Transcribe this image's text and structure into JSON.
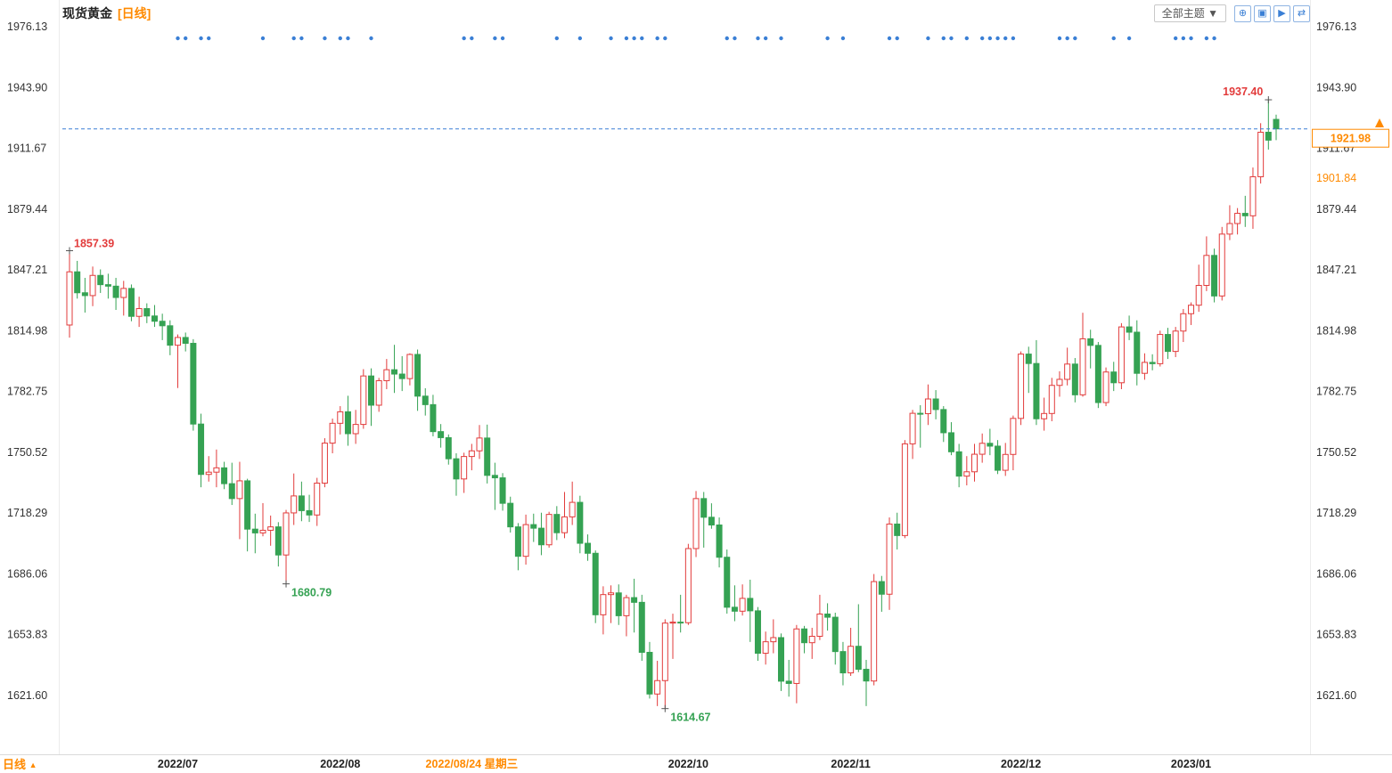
{
  "header": {
    "title": "现货黄金",
    "period_tag": "[日线]",
    "theme_button_label": "全部主题 ▼",
    "toolbar_icons": [
      {
        "name": "pan-icon",
        "glyph": "⊕"
      },
      {
        "name": "kline-style-icon",
        "glyph": "▣"
      },
      {
        "name": "playback-icon",
        "glyph": "▶"
      },
      {
        "name": "export-icon",
        "glyph": "⇄"
      }
    ]
  },
  "footer": {
    "period_label": "日线",
    "arrow": "▲"
  },
  "chart_data": {
    "type": "candlestick",
    "title": "现货黄金 [日线]",
    "xlabel": "",
    "ylabel": "",
    "y_ticks": [
      1976.13,
      1943.9,
      1911.67,
      1879.44,
      1847.21,
      1814.98,
      1782.75,
      1750.52,
      1718.29,
      1686.06,
      1653.83,
      1621.6
    ],
    "y_range": [
      1621.6,
      1976.13
    ],
    "current_price": 1921.98,
    "secondary_price": 1901.84,
    "grid": "off",
    "x_labels": [
      {
        "label": "2022/07",
        "index": 14,
        "highlight": false
      },
      {
        "label": "2022/08",
        "index": 35,
        "highlight": false
      },
      {
        "label": "2022/08/24 星期三",
        "index": 52,
        "highlight": true
      },
      {
        "label": "2022/10",
        "index": 80,
        "highlight": false
      },
      {
        "label": "2022/11",
        "index": 101,
        "highlight": false
      },
      {
        "label": "2022/12",
        "index": 123,
        "highlight": false
      },
      {
        "label": "2023/01",
        "index": 145,
        "highlight": false
      }
    ],
    "annotations": [
      {
        "text": "1857.39",
        "index": 0,
        "at": "high",
        "align": "right"
      },
      {
        "text": "1680.79",
        "index": 28,
        "at": "low",
        "align": "right"
      },
      {
        "text": "1614.67",
        "index": 77,
        "at": "low",
        "align": "right"
      },
      {
        "text": "1937.40",
        "index": 155,
        "at": "high",
        "align": "left"
      }
    ],
    "event_marker_indices": [
      14,
      15,
      17,
      18,
      25,
      29,
      30,
      33,
      35,
      36,
      39,
      51,
      52,
      55,
      56,
      63,
      66,
      70,
      72,
      73,
      74,
      76,
      77,
      85,
      86,
      89,
      90,
      92,
      98,
      100,
      106,
      107,
      111,
      113,
      114,
      116,
      118,
      119,
      120,
      121,
      122,
      128,
      129,
      130,
      135,
      137,
      143,
      144,
      145,
      147,
      148
    ],
    "colors": {
      "up": "#e23b3b",
      "down": "#35a253",
      "marker": "#3a7fd5",
      "price_line": "#3a7fd5",
      "highlight": "#ff8a00",
      "axis_text": "#333333"
    },
    "candles": [
      [
        "2022-06-13",
        1818.0,
        1857.39,
        1811.3,
        1846.2
      ],
      [
        "2022-06-14",
        1846.2,
        1852.0,
        1832.0,
        1835.1
      ],
      [
        "2022-06-15",
        1835.1,
        1843.0,
        1824.6,
        1833.6
      ],
      [
        "2022-06-16",
        1833.6,
        1849.0,
        1828.0,
        1844.3
      ],
      [
        "2022-06-17",
        1844.3,
        1847.5,
        1835.0,
        1839.4
      ],
      [
        "2022-06-20",
        1839.4,
        1845.2,
        1832.0,
        1838.6
      ],
      [
        "2022-06-21",
        1838.6,
        1843.0,
        1826.0,
        1832.6
      ],
      [
        "2022-06-22",
        1832.6,
        1841.4,
        1823.0,
        1837.4
      ],
      [
        "2022-06-23",
        1837.4,
        1839.5,
        1820.0,
        1822.6
      ],
      [
        "2022-06-24",
        1822.6,
        1833.0,
        1817.0,
        1826.7
      ],
      [
        "2022-06-27",
        1826.7,
        1829.5,
        1819.0,
        1822.8
      ],
      [
        "2022-06-28",
        1822.8,
        1828.6,
        1817.0,
        1820.0
      ],
      [
        "2022-06-29",
        1820.0,
        1824.0,
        1810.0,
        1817.6
      ],
      [
        "2022-06-30",
        1817.6,
        1820.5,
        1802.0,
        1807.3
      ],
      [
        "2022-07-01",
        1807.3,
        1813.0,
        1784.6,
        1811.4
      ],
      [
        "2022-07-04",
        1811.4,
        1814.0,
        1804.0,
        1808.3
      ],
      [
        "2022-07-05",
        1808.3,
        1810.5,
        1762.0,
        1765.5
      ],
      [
        "2022-07-06",
        1765.5,
        1771.0,
        1732.0,
        1738.8
      ],
      [
        "2022-07-07",
        1738.8,
        1748.5,
        1735.0,
        1740.0
      ],
      [
        "2022-07-08",
        1740.0,
        1752.0,
        1732.0,
        1742.3
      ],
      [
        "2022-07-11",
        1742.3,
        1745.5,
        1731.0,
        1733.9
      ],
      [
        "2022-07-12",
        1733.9,
        1745.0,
        1722.6,
        1726.0
      ],
      [
        "2022-07-13",
        1726.0,
        1745.5,
        1704.5,
        1735.4
      ],
      [
        "2022-07-14",
        1735.4,
        1736.5,
        1698.0,
        1709.8
      ],
      [
        "2022-07-15",
        1709.8,
        1718.0,
        1697.0,
        1707.8
      ],
      [
        "2022-07-18",
        1707.8,
        1723.6,
        1706.0,
        1709.2
      ],
      [
        "2022-07-19",
        1709.2,
        1717.0,
        1701.0,
        1711.0
      ],
      [
        "2022-07-20",
        1711.0,
        1713.5,
        1690.0,
        1696.1
      ],
      [
        "2022-07-21",
        1696.1,
        1720.0,
        1680.79,
        1718.4
      ],
      [
        "2022-07-22",
        1718.4,
        1739.3,
        1712.0,
        1727.4
      ],
      [
        "2022-07-25",
        1727.4,
        1735.0,
        1714.0,
        1719.6
      ],
      [
        "2022-07-26",
        1719.6,
        1728.0,
        1713.6,
        1717.3
      ],
      [
        "2022-07-27",
        1717.3,
        1737.0,
        1711.5,
        1734.2
      ],
      [
        "2022-07-28",
        1734.2,
        1758.0,
        1732.0,
        1755.4
      ],
      [
        "2022-07-29",
        1755.4,
        1768.4,
        1750.0,
        1765.9
      ],
      [
        "2022-08-01",
        1765.9,
        1775.0,
        1760.0,
        1772.0
      ],
      [
        "2022-08-02",
        1772.0,
        1780.5,
        1754.0,
        1760.4
      ],
      [
        "2022-08-03",
        1760.4,
        1773.0,
        1755.0,
        1765.3
      ],
      [
        "2022-08-04",
        1765.3,
        1794.6,
        1763.0,
        1791.0
      ],
      [
        "2022-08-05",
        1791.0,
        1795.0,
        1764.5,
        1775.5
      ],
      [
        "2022-08-08",
        1775.5,
        1790.0,
        1772.0,
        1788.5
      ],
      [
        "2022-08-09",
        1788.5,
        1800.0,
        1784.0,
        1794.3
      ],
      [
        "2022-08-10",
        1794.3,
        1807.5,
        1782.0,
        1792.0
      ],
      [
        "2022-08-11",
        1792.0,
        1801.5,
        1783.0,
        1789.6
      ],
      [
        "2022-08-12",
        1789.6,
        1803.0,
        1786.0,
        1802.4
      ],
      [
        "2022-08-15",
        1802.4,
        1805.0,
        1772.5,
        1780.3
      ],
      [
        "2022-08-16",
        1780.3,
        1784.5,
        1770.0,
        1775.8
      ],
      [
        "2022-08-17",
        1775.8,
        1781.0,
        1759.0,
        1761.5
      ],
      [
        "2022-08-18",
        1761.5,
        1765.5,
        1753.0,
        1758.3
      ],
      [
        "2022-08-19",
        1758.3,
        1760.0,
        1744.0,
        1747.1
      ],
      [
        "2022-08-22",
        1747.1,
        1750.0,
        1727.5,
        1736.4
      ],
      [
        "2022-08-23",
        1736.4,
        1750.3,
        1729.0,
        1748.3
      ],
      [
        "2022-08-24",
        1748.3,
        1755.0,
        1741.0,
        1751.3
      ],
      [
        "2022-08-25",
        1751.3,
        1765.0,
        1747.0,
        1758.1
      ],
      [
        "2022-08-26",
        1758.1,
        1765.2,
        1734.0,
        1738.3
      ],
      [
        "2022-08-29",
        1738.3,
        1745.0,
        1720.0,
        1737.0
      ],
      [
        "2022-08-30",
        1737.0,
        1739.5,
        1719.6,
        1723.5
      ],
      [
        "2022-08-31",
        1723.5,
        1727.0,
        1708.0,
        1711.0
      ],
      [
        "2022-09-01",
        1711.0,
        1713.0,
        1688.0,
        1695.4
      ],
      [
        "2022-09-02",
        1695.4,
        1717.5,
        1691.0,
        1712.2
      ],
      [
        "2022-09-05",
        1712.2,
        1718.0,
        1703.0,
        1710.3
      ],
      [
        "2022-09-06",
        1710.3,
        1718.5,
        1696.0,
        1701.5
      ],
      [
        "2022-09-07",
        1701.5,
        1719.0,
        1700.0,
        1717.6
      ],
      [
        "2022-09-08",
        1717.6,
        1722.0,
        1704.0,
        1707.9
      ],
      [
        "2022-09-09",
        1707.9,
        1729.5,
        1705.0,
        1716.3
      ],
      [
        "2022-09-12",
        1716.3,
        1735.0,
        1712.0,
        1724.0
      ],
      [
        "2022-09-13",
        1724.0,
        1727.5,
        1697.0,
        1702.3
      ],
      [
        "2022-09-14",
        1702.3,
        1707.0,
        1693.0,
        1697.0
      ],
      [
        "2022-09-15",
        1697.0,
        1698.5,
        1660.0,
        1664.4
      ],
      [
        "2022-09-16",
        1664.4,
        1679.5,
        1654.0,
        1675.1
      ],
      [
        "2022-09-19",
        1675.1,
        1680.0,
        1660.0,
        1676.0
      ],
      [
        "2022-09-20",
        1676.0,
        1680.5,
        1659.0,
        1663.9
      ],
      [
        "2022-09-21",
        1663.9,
        1675.0,
        1653.0,
        1673.5
      ],
      [
        "2022-09-22",
        1673.5,
        1683.5,
        1655.0,
        1671.0
      ],
      [
        "2022-09-23",
        1671.0,
        1675.0,
        1640.0,
        1644.5
      ],
      [
        "2022-09-26",
        1644.5,
        1650.0,
        1620.0,
        1622.4
      ],
      [
        "2022-09-27",
        1622.4,
        1640.0,
        1616.0,
        1629.5
      ],
      [
        "2022-09-28",
        1629.5,
        1662.0,
        1614.67,
        1660.0
      ],
      [
        "2022-09-29",
        1660.0,
        1665.0,
        1641.0,
        1660.5
      ],
      [
        "2022-09-30",
        1660.5,
        1675.0,
        1655.0,
        1660.2
      ],
      [
        "2022-10-03",
        1660.2,
        1702.0,
        1659.0,
        1699.5
      ],
      [
        "2022-10-04",
        1699.5,
        1730.0,
        1695.0,
        1726.0
      ],
      [
        "2022-10-05",
        1726.0,
        1729.5,
        1700.0,
        1716.1
      ],
      [
        "2022-10-06",
        1716.1,
        1723.5,
        1710.0,
        1712.0
      ],
      [
        "2022-10-07",
        1712.0,
        1716.0,
        1689.5,
        1694.9
      ],
      [
        "2022-10-10",
        1694.9,
        1699.0,
        1665.0,
        1668.4
      ],
      [
        "2022-10-11",
        1668.4,
        1680.0,
        1661.0,
        1666.3
      ],
      [
        "2022-10-12",
        1666.3,
        1680.5,
        1664.0,
        1673.1
      ],
      [
        "2022-10-13",
        1673.1,
        1683.0,
        1650.0,
        1666.5
      ],
      [
        "2022-10-14",
        1666.5,
        1668.5,
        1640.0,
        1644.0
      ],
      [
        "2022-10-17",
        1644.0,
        1655.5,
        1638.0,
        1650.1
      ],
      [
        "2022-10-18",
        1650.1,
        1662.0,
        1644.0,
        1652.3
      ],
      [
        "2022-10-19",
        1652.3,
        1654.5,
        1624.0,
        1629.2
      ],
      [
        "2022-10-20",
        1629.2,
        1640.5,
        1621.0,
        1628.0
      ],
      [
        "2022-10-21",
        1628.0,
        1659.0,
        1617.5,
        1656.9
      ],
      [
        "2022-10-24",
        1656.9,
        1658.5,
        1644.0,
        1649.6
      ],
      [
        "2022-10-25",
        1649.6,
        1657.5,
        1641.0,
        1653.0
      ],
      [
        "2022-10-26",
        1653.0,
        1675.0,
        1651.0,
        1664.8
      ],
      [
        "2022-10-27",
        1664.8,
        1670.5,
        1656.0,
        1663.1
      ],
      [
        "2022-10-28",
        1663.1,
        1665.5,
        1638.0,
        1644.9
      ],
      [
        "2022-10-31",
        1644.9,
        1650.0,
        1627.0,
        1633.6
      ],
      [
        "2022-11-01",
        1633.6,
        1657.5,
        1632.0,
        1647.7
      ],
      [
        "2022-11-02",
        1647.7,
        1670.0,
        1634.0,
        1635.5
      ],
      [
        "2022-11-03",
        1635.5,
        1640.5,
        1616.0,
        1629.3
      ],
      [
        "2022-11-04",
        1629.3,
        1686.0,
        1627.0,
        1682.0
      ],
      [
        "2022-11-07",
        1682.0,
        1685.0,
        1666.0,
        1675.3
      ],
      [
        "2022-11-08",
        1675.3,
        1716.0,
        1667.0,
        1712.5
      ],
      [
        "2022-11-09",
        1712.5,
        1718.5,
        1699.0,
        1706.4
      ],
      [
        "2022-11-10",
        1706.4,
        1757.0,
        1705.0,
        1755.0
      ],
      [
        "2022-11-11",
        1755.0,
        1773.0,
        1747.0,
        1771.2
      ],
      [
        "2022-11-14",
        1771.2,
        1775.5,
        1753.0,
        1771.0
      ],
      [
        "2022-11-15",
        1771.0,
        1786.5,
        1765.0,
        1778.8
      ],
      [
        "2022-11-16",
        1778.8,
        1783.5,
        1768.0,
        1773.2
      ],
      [
        "2022-11-17",
        1773.2,
        1775.0,
        1756.0,
        1760.9
      ],
      [
        "2022-11-18",
        1760.9,
        1766.5,
        1749.0,
        1750.8
      ],
      [
        "2022-11-21",
        1750.8,
        1755.0,
        1732.0,
        1737.9
      ],
      [
        "2022-11-22",
        1737.9,
        1748.5,
        1733.0,
        1740.2
      ],
      [
        "2022-11-23",
        1740.2,
        1755.0,
        1735.0,
        1749.5
      ],
      [
        "2022-11-24",
        1749.5,
        1760.5,
        1745.0,
        1755.3
      ],
      [
        "2022-11-25",
        1755.3,
        1763.0,
        1749.0,
        1753.8
      ],
      [
        "2022-11-28",
        1753.8,
        1757.0,
        1739.0,
        1741.0
      ],
      [
        "2022-11-29",
        1741.0,
        1755.5,
        1738.0,
        1749.4
      ],
      [
        "2022-11-30",
        1749.4,
        1770.0,
        1741.0,
        1768.5
      ],
      [
        "2022-12-01",
        1768.5,
        1804.0,
        1765.0,
        1802.6
      ],
      [
        "2022-12-02",
        1802.6,
        1806.5,
        1782.0,
        1797.6
      ],
      [
        "2022-12-05",
        1797.6,
        1810.0,
        1765.0,
        1768.3
      ],
      [
        "2022-12-06",
        1768.3,
        1779.5,
        1762.0,
        1771.1
      ],
      [
        "2022-12-07",
        1771.1,
        1790.0,
        1767.0,
        1786.0
      ],
      [
        "2022-12-08",
        1786.0,
        1793.5,
        1780.0,
        1789.2
      ],
      [
        "2022-12-09",
        1789.2,
        1806.0,
        1786.0,
        1797.3
      ],
      [
        "2022-12-12",
        1797.3,
        1800.5,
        1777.0,
        1781.0
      ],
      [
        "2022-12-13",
        1781.0,
        1824.5,
        1780.0,
        1810.7
      ],
      [
        "2022-12-14",
        1810.7,
        1815.5,
        1795.0,
        1807.2
      ],
      [
        "2022-12-15",
        1807.2,
        1809.0,
        1774.0,
        1776.9
      ],
      [
        "2022-12-16",
        1776.9,
        1795.5,
        1775.0,
        1793.1
      ],
      [
        "2022-12-19",
        1793.1,
        1798.5,
        1783.0,
        1787.4
      ],
      [
        "2022-12-20",
        1787.4,
        1819.0,
        1784.0,
        1817.0
      ],
      [
        "2022-12-21",
        1817.0,
        1823.0,
        1810.0,
        1814.2
      ],
      [
        "2022-12-22",
        1814.2,
        1820.5,
        1786.0,
        1792.4
      ],
      [
        "2022-12-23",
        1792.4,
        1803.0,
        1789.0,
        1798.2
      ],
      [
        "2022-12-26",
        1798.2,
        1802.5,
        1794.0,
        1797.5
      ],
      [
        "2022-12-27",
        1797.5,
        1815.0,
        1796.0,
        1813.0
      ],
      [
        "2022-12-28",
        1813.0,
        1816.5,
        1800.0,
        1804.0
      ],
      [
        "2022-12-29",
        1804.0,
        1817.0,
        1801.0,
        1814.8
      ],
      [
        "2022-12-30",
        1814.8,
        1826.5,
        1809.0,
        1824.0
      ],
      [
        "2023-01-02",
        1824.0,
        1830.0,
        1818.0,
        1828.5
      ],
      [
        "2023-01-03",
        1828.5,
        1850.0,
        1825.0,
        1839.0
      ],
      [
        "2023-01-04",
        1839.0,
        1865.0,
        1836.0,
        1854.9
      ],
      [
        "2023-01-05",
        1854.9,
        1858.5,
        1830.0,
        1833.4
      ],
      [
        "2023-01-06",
        1833.4,
        1870.0,
        1831.0,
        1866.2
      ],
      [
        "2023-01-09",
        1866.2,
        1881.5,
        1863.0,
        1871.8
      ],
      [
        "2023-01-10",
        1871.8,
        1880.0,
        1866.0,
        1877.2
      ],
      [
        "2023-01-11",
        1877.2,
        1886.5,
        1870.0,
        1875.9
      ],
      [
        "2023-01-12",
        1875.9,
        1901.5,
        1869.0,
        1896.6
      ],
      [
        "2023-01-13",
        1896.6,
        1925.0,
        1893.0,
        1920.2
      ],
      [
        "2023-01-16",
        1920.2,
        1937.4,
        1911.0,
        1916.0
      ],
      [
        "2023-01-17",
        1927.0,
        1929.5,
        1916.0,
        1921.98
      ]
    ]
  }
}
